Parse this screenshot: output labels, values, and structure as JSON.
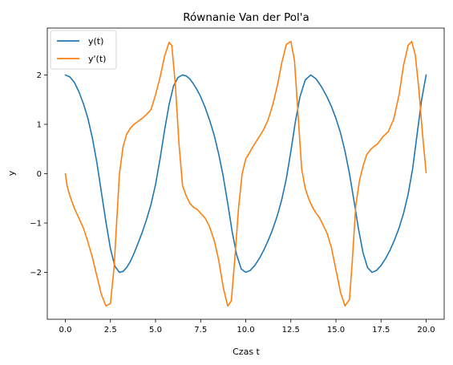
{
  "chart_data": {
    "type": "line",
    "title": "Równanie Van der Pol'a",
    "xlabel": "Czas t",
    "ylabel": "y",
    "xlim": [
      -1.0,
      21.0
    ],
    "ylim": [
      -2.95,
      2.95
    ],
    "x_ticks": [
      0,
      2.5,
      5,
      7.5,
      10,
      12.5,
      15,
      17.5,
      20
    ],
    "x_tick_labels": [
      "0.0",
      "2.5",
      "5.0",
      "7.5",
      "10.0",
      "12.5",
      "15.0",
      "17.5",
      "20.0"
    ],
    "y_ticks": [
      -2,
      -1,
      0,
      1,
      2
    ],
    "y_tick_labels": [
      "−2",
      "−1",
      "0",
      "1",
      "2"
    ],
    "grid": false,
    "legend_position": "top-left",
    "series": [
      {
        "name": "y(t)",
        "color": "#1f77b4",
        "x": [
          0.0,
          0.25,
          0.5,
          0.75,
          1.0,
          1.25,
          1.5,
          1.75,
          2.0,
          2.25,
          2.5,
          2.75,
          3.0,
          3.2,
          3.4,
          3.6,
          3.8,
          4.0,
          4.25,
          4.5,
          4.75,
          5.0,
          5.25,
          5.5,
          5.75,
          6.0,
          6.25,
          6.5,
          6.7,
          6.9,
          7.1,
          7.3,
          7.5,
          7.75,
          8.0,
          8.25,
          8.5,
          8.75,
          9.0,
          9.25,
          9.5,
          9.75,
          10.0,
          10.25,
          10.5,
          10.75,
          11.0,
          11.25,
          11.5,
          11.75,
          12.0,
          12.25,
          12.5,
          12.75,
          13.0,
          13.3,
          13.6,
          13.9,
          14.2,
          14.5,
          14.75,
          15.0,
          15.25,
          15.5,
          15.75,
          16.0,
          16.25,
          16.5,
          16.75,
          17.0,
          17.25,
          17.5,
          17.75,
          18.0,
          18.25,
          18.5,
          18.75,
          19.0,
          19.25,
          19.5,
          19.75,
          20.0
        ],
        "values": [
          2.0,
          1.96,
          1.85,
          1.66,
          1.42,
          1.12,
          0.72,
          0.22,
          -0.38,
          -0.98,
          -1.52,
          -1.88,
          -2.0,
          -1.98,
          -1.9,
          -1.78,
          -1.62,
          -1.44,
          -1.2,
          -0.93,
          -0.62,
          -0.22,
          0.3,
          0.88,
          1.4,
          1.78,
          1.95,
          2.0,
          1.98,
          1.92,
          1.82,
          1.7,
          1.56,
          1.34,
          1.08,
          0.78,
          0.4,
          -0.05,
          -0.6,
          -1.18,
          -1.65,
          -1.93,
          -2.0,
          -1.96,
          -1.86,
          -1.72,
          -1.55,
          -1.35,
          -1.12,
          -0.85,
          -0.52,
          -0.1,
          0.45,
          1.05,
          1.55,
          1.9,
          2.0,
          1.92,
          1.76,
          1.56,
          1.36,
          1.12,
          0.83,
          0.46,
          0.0,
          -0.55,
          -1.12,
          -1.6,
          -1.9,
          -2.0,
          -1.96,
          -1.86,
          -1.72,
          -1.55,
          -1.34,
          -1.1,
          -0.8,
          -0.42,
          0.1,
          0.8,
          1.5,
          2.0
        ]
      },
      {
        "name": "y'(t)",
        "color": "#ff7f0e",
        "x": [
          0.0,
          0.1,
          0.25,
          0.5,
          0.75,
          1.0,
          1.25,
          1.5,
          1.75,
          2.0,
          2.25,
          2.5,
          2.7,
          2.85,
          3.0,
          3.2,
          3.4,
          3.6,
          3.8,
          4.0,
          4.25,
          4.5,
          4.75,
          5.0,
          5.25,
          5.5,
          5.75,
          5.9,
          6.1,
          6.3,
          6.5,
          6.7,
          6.9,
          7.1,
          7.3,
          7.5,
          7.75,
          8.0,
          8.25,
          8.5,
          8.75,
          9.0,
          9.2,
          9.4,
          9.6,
          9.8,
          10.0,
          10.2,
          10.4,
          10.7,
          11.0,
          11.25,
          11.5,
          11.75,
          12.0,
          12.25,
          12.5,
          12.7,
          12.9,
          13.1,
          13.3,
          13.5,
          13.7,
          13.9,
          14.1,
          14.3,
          14.5,
          14.75,
          15.0,
          15.25,
          15.5,
          15.75,
          15.9,
          16.1,
          16.3,
          16.5,
          16.7,
          16.9,
          17.1,
          17.3,
          17.6,
          17.9,
          18.2,
          18.5,
          18.75,
          19.0,
          19.2,
          19.4,
          19.6,
          19.8,
          20.0
        ],
        "values": [
          0.0,
          -0.25,
          -0.45,
          -0.7,
          -0.9,
          -1.1,
          -1.38,
          -1.7,
          -2.08,
          -2.45,
          -2.68,
          -2.63,
          -1.9,
          -0.95,
          0.0,
          0.55,
          0.8,
          0.92,
          1.0,
          1.05,
          1.12,
          1.2,
          1.3,
          1.6,
          1.95,
          2.38,
          2.66,
          2.6,
          1.8,
          0.6,
          -0.25,
          -0.45,
          -0.6,
          -0.68,
          -0.72,
          -0.8,
          -0.9,
          -1.08,
          -1.35,
          -1.75,
          -2.3,
          -2.68,
          -2.58,
          -1.7,
          -0.7,
          0.0,
          0.3,
          0.42,
          0.55,
          0.72,
          0.9,
          1.1,
          1.4,
          1.78,
          2.25,
          2.62,
          2.68,
          2.3,
          1.2,
          0.1,
          -0.3,
          -0.52,
          -0.68,
          -0.8,
          -0.9,
          -1.05,
          -1.2,
          -1.5,
          -1.95,
          -2.4,
          -2.68,
          -2.55,
          -1.8,
          -0.65,
          -0.15,
          0.15,
          0.38,
          0.48,
          0.55,
          0.6,
          0.75,
          0.85,
          1.1,
          1.6,
          2.2,
          2.6,
          2.68,
          2.4,
          1.7,
          0.8,
          0.02
        ]
      }
    ]
  }
}
